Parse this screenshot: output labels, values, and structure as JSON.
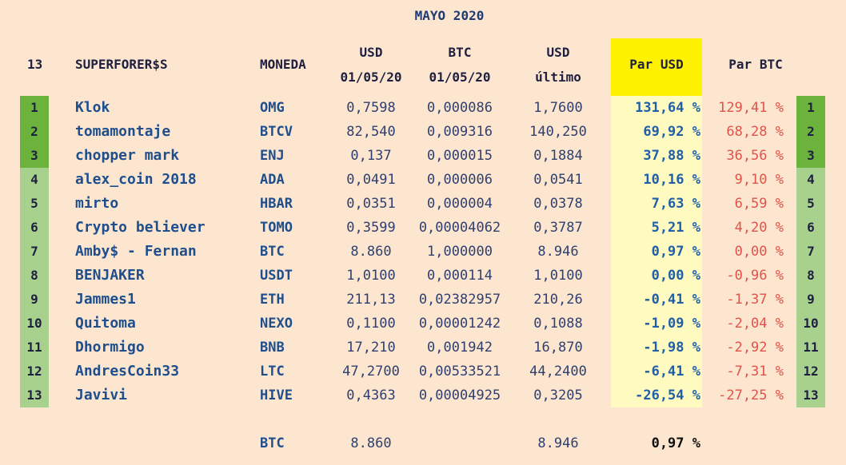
{
  "title": "MAYO 2020",
  "header": {
    "count": "13",
    "name": "SUPERFORER$S",
    "moneda": "MONEDA",
    "usd_start": [
      "USD",
      "01/05/20"
    ],
    "btc_start": [
      "BTC",
      "01/05/20"
    ],
    "usd_last": [
      "USD",
      "último"
    ],
    "par_usd": "Par USD",
    "par_btc": "Par BTC"
  },
  "rows": [
    {
      "rank": "1",
      "name": "Klok",
      "coin": "OMG",
      "usd": "0,7598",
      "btc": "0,000086",
      "last": "1,7600",
      "par_usd": "131,64 %",
      "par_btc": "129,41 %"
    },
    {
      "rank": "2",
      "name": "tomamontaje",
      "coin": "BTCV",
      "usd": "82,540",
      "btc": "0,009316",
      "last": "140,250",
      "par_usd": "69,92 %",
      "par_btc": "68,28 %"
    },
    {
      "rank": "3",
      "name": "chopper mark",
      "coin": "ENJ",
      "usd": "0,137",
      "btc": "0,000015",
      "last": "0,1884",
      "par_usd": "37,88 %",
      "par_btc": "36,56 %"
    },
    {
      "rank": "4",
      "name": "alex_coin 2018",
      "coin": "ADA",
      "usd": "0,0491",
      "btc": "0,000006",
      "last": "0,0541",
      "par_usd": "10,16 %",
      "par_btc": "9,10 %"
    },
    {
      "rank": "5",
      "name": "mirto",
      "coin": "HBAR",
      "usd": "0,0351",
      "btc": "0,000004",
      "last": "0,0378",
      "par_usd": "7,63 %",
      "par_btc": "6,59 %"
    },
    {
      "rank": "6",
      "name": "Crypto believer",
      "coin": "TOMO",
      "usd": "0,3599",
      "btc": "0,00004062",
      "last": "0,3787",
      "par_usd": "5,21 %",
      "par_btc": "4,20 %"
    },
    {
      "rank": "7",
      "name": "Amby$ -  Fernan",
      "coin": "BTC",
      "usd": "8.860",
      "btc": "1,000000",
      "last": "8.946",
      "par_usd": "0,97 %",
      "par_btc": "0,00 %"
    },
    {
      "rank": "8",
      "name": "BENJAKER",
      "coin": "USDT",
      "usd": "1,0100",
      "btc": "0,000114",
      "last": "1,0100",
      "par_usd": "0,00 %",
      "par_btc": "-0,96 %"
    },
    {
      "rank": "9",
      "name": "Jammes1",
      "coin": "ETH",
      "usd": "211,13",
      "btc": "0,02382957",
      "last": "210,26",
      "par_usd": "-0,41 %",
      "par_btc": "-1,37 %"
    },
    {
      "rank": "10",
      "name": "Quitoma",
      "coin": "NEXO",
      "usd": "0,1100",
      "btc": "0,00001242",
      "last": "0,1088",
      "par_usd": "-1,09 %",
      "par_btc": "-2,04 %"
    },
    {
      "rank": "11",
      "name": "Dhormigo",
      "coin": "BNB",
      "usd": "17,210",
      "btc": "0,001942",
      "last": "16,870",
      "par_usd": "-1,98 %",
      "par_btc": "-2,92 %"
    },
    {
      "rank": "12",
      "name": "AndresCoin33",
      "coin": "LTC",
      "usd": "47,2700",
      "btc": "0,00533521",
      "last": "44,2400",
      "par_usd": "-6,41 %",
      "par_btc": "-7,31 %"
    },
    {
      "rank": "13",
      "name": "Javivi",
      "coin": "HIVE",
      "usd": "0,4363",
      "btc": "0,00004925",
      "last": "0,3205",
      "par_usd": "-26,54 %",
      "par_btc": "-27,25 %"
    }
  ],
  "footer": {
    "coin": "BTC",
    "usd": "8.860",
    "last": "8.946",
    "par_usd": "0,97 %"
  },
  "colors": {
    "background": "#fde6cf",
    "rank_top": "#6bb33d",
    "rank": "#a9d18e",
    "par_usd_header": "#fff200",
    "par_usd_column": "#fffac0",
    "negative": "#e0534a"
  }
}
